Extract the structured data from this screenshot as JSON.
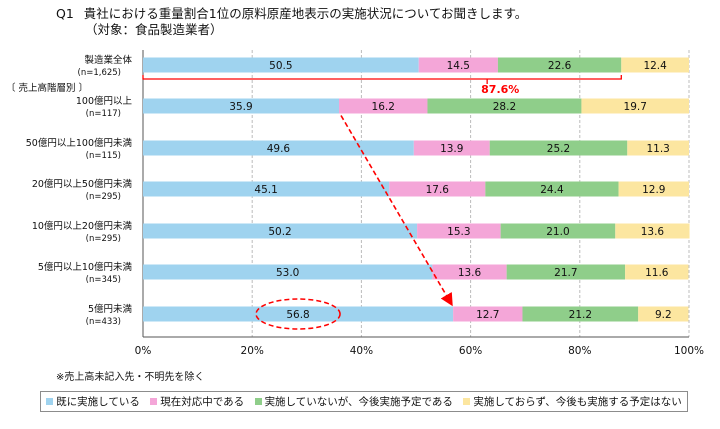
{
  "title": {
    "qnum": "Q1",
    "text": "貴社における重量割合1位の原料原産地表示の実施状況についてお聞きします。",
    "subtitle": "（対象：食品製造業者）"
  },
  "colors": {
    "implemented": "#9fd3ef",
    "in_progress": "#f4a6d8",
    "planned": "#8fce8a",
    "not_planned": "#fce6a0",
    "annotation": "#ff0000"
  },
  "chart_data": {
    "type": "bar",
    "orientation": "horizontal",
    "stacked": true,
    "percent": true,
    "xlim": [
      0,
      100
    ],
    "xticks": [
      "0%",
      "20%",
      "40%",
      "60%",
      "80%",
      "100%"
    ],
    "group_label": "〔 売上高階層別 〕",
    "categories": [
      {
        "label": "製造業全体",
        "n": "(n=1,625)"
      },
      {
        "label": "100億円以上",
        "n": "(n=117)"
      },
      {
        "label": "50億円以上100億円未満",
        "n": "(n=115)"
      },
      {
        "label": "20億円以上50億円未満",
        "n": "(n=295)"
      },
      {
        "label": "10億円以上20億円未満",
        "n": "(n=295)"
      },
      {
        "label": "5億円以上10億円未満",
        "n": "(n=345)"
      },
      {
        "label": "5億円未満",
        "n": "(n=433)"
      }
    ],
    "series": [
      {
        "name": "既に実施している",
        "values": [
          50.5,
          35.9,
          49.6,
          45.1,
          50.2,
          53.0,
          56.8
        ]
      },
      {
        "name": "現在対応中である",
        "values": [
          14.5,
          16.2,
          13.9,
          17.6,
          15.3,
          13.6,
          12.7
        ]
      },
      {
        "name": "実施していないが、今後実施予定である",
        "values": [
          22.6,
          28.2,
          25.2,
          24.4,
          21.0,
          21.7,
          21.2
        ]
      },
      {
        "name": "実施しておらず、今後も実施する予定はない",
        "values": [
          12.4,
          19.7,
          11.3,
          12.9,
          13.6,
          11.6,
          9.2
        ]
      }
    ],
    "value_labels": [
      [
        "50.5",
        "14.5",
        "22.6",
        "12.4"
      ],
      [
        "35.9",
        "16.2",
        "28.2",
        "19.7"
      ],
      [
        "49.6",
        "13.9",
        "25.2",
        "11.3"
      ],
      [
        "45.1",
        "17.6",
        "24.4",
        "12.9"
      ],
      [
        "50.2",
        "15.3",
        "21.0",
        "13.6"
      ],
      [
        "53.0",
        "13.6",
        "21.7",
        "11.6"
      ],
      [
        "56.8",
        "12.7",
        "21.2",
        "9.2"
      ]
    ],
    "annotations": {
      "bracket_label": "87.6%",
      "bracket_end_value": 87.6,
      "arrow_from": {
        "row": 1,
        "value": 35.9
      },
      "arrow_to": {
        "row": 6,
        "value": 56.8
      },
      "circle": {
        "row": 6,
        "value": 28.4
      }
    }
  },
  "footnote": "※売上高未記入先・不明先を除く"
}
